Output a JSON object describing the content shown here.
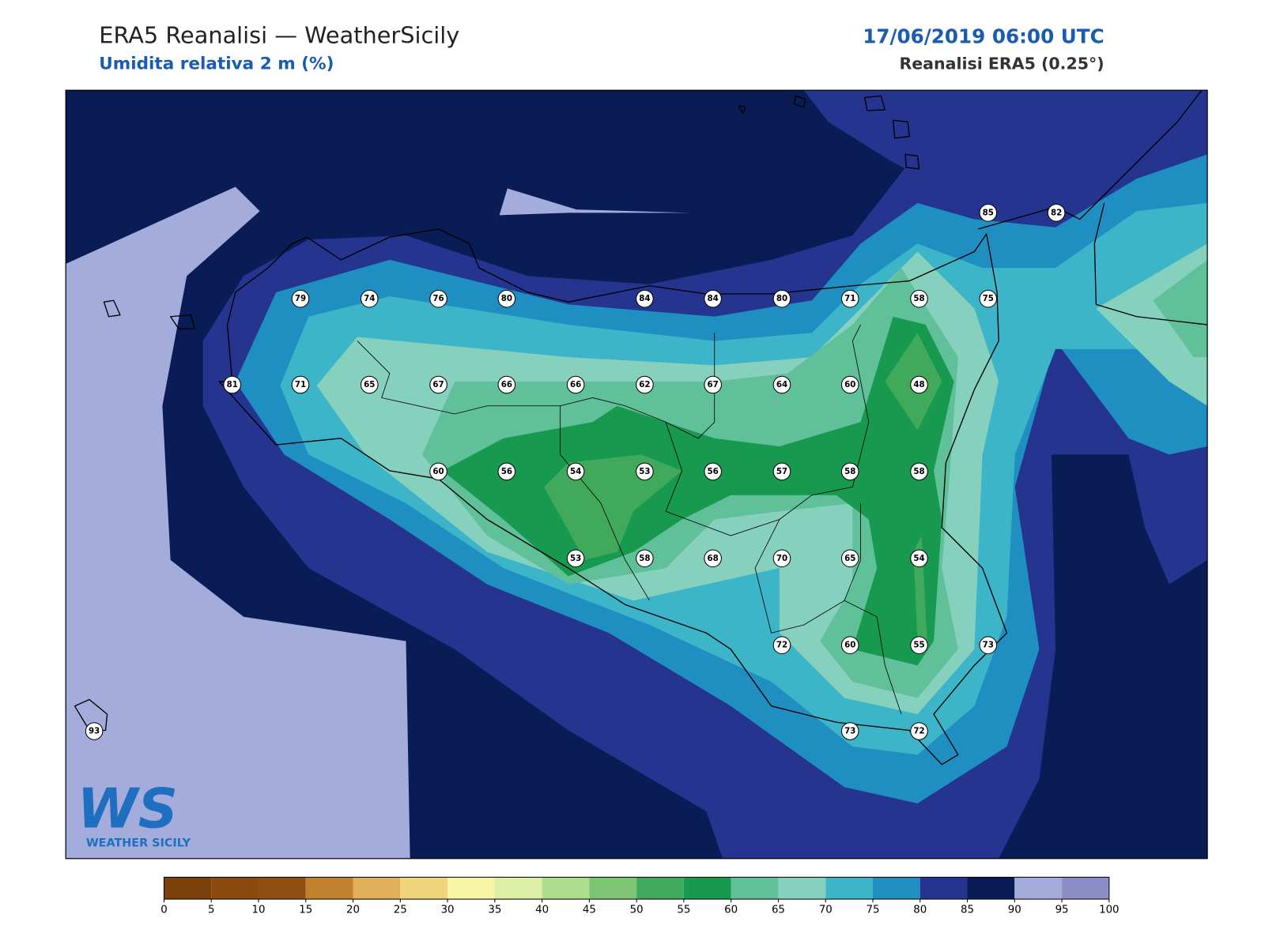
{
  "header": {
    "title": "ERA5 Reanalisi — WeatherSicily",
    "subtitle": "Umidita relativa 2 m (%)",
    "datetime": "17/06/2019 06:00 UTC",
    "source": "Reanalisi ERA5 (0.25°)"
  },
  "stations": {
    "values": [
      85,
      82,
      79,
      74,
      76,
      80,
      84,
      84,
      80,
      71,
      58,
      75,
      81,
      71,
      65,
      67,
      66,
      66,
      62,
      67,
      64,
      60,
      48,
      60,
      56,
      54,
      53,
      56,
      57,
      58,
      58,
      53,
      58,
      68,
      70,
      65,
      54,
      72,
      60,
      55,
      73,
      93,
      73,
      72
    ]
  },
  "colorbar": {
    "ticks": [
      0,
      5,
      10,
      15,
      20,
      25,
      30,
      35,
      40,
      45,
      50,
      55,
      60,
      65,
      70,
      75,
      80,
      85,
      90,
      95,
      100
    ],
    "colors": [
      "#7a400a",
      "#8a4a0d",
      "#8f5012",
      "#c0822d",
      "#e0b05b",
      "#f1d57c",
      "#f8f5a5",
      "#dcefa6",
      "#aedd8e",
      "#7dc473",
      "#41a95b",
      "#179a4f",
      "#5fc09a",
      "#86d0be",
      "#3db5c8",
      "#1f8fc2",
      "#24348f",
      "#0a1c55",
      "#a4acdc",
      "#8d8ec8"
    ]
  },
  "logo": {
    "mark": "WS",
    "text": "WEATHER SICILY"
  }
}
